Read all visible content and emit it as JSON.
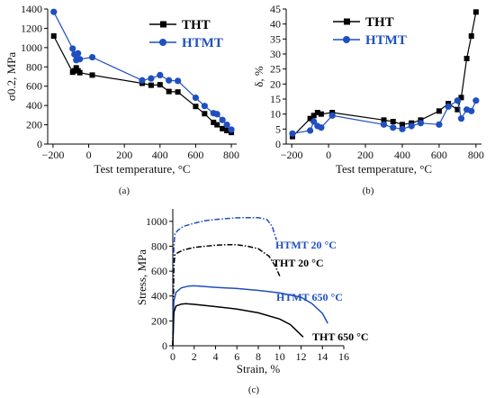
{
  "colors": {
    "tht": "#000000",
    "htmt": "#1f4fbf",
    "axis": "#000000"
  },
  "panels": [
    {
      "id": "a",
      "label": "(a)"
    },
    {
      "id": "b",
      "label": "(b)"
    },
    {
      "id": "c",
      "label": "(c)"
    }
  ],
  "chart_data": [
    {
      "id": "a",
      "type": "line",
      "xlabel": "Test temperature, °C",
      "ylabel": "σ0.2, MPa",
      "xlim": [
        -230,
        830
      ],
      "ylim": [
        0,
        1400
      ],
      "xticks": [
        -200,
        0,
        200,
        400,
        600,
        800
      ],
      "xtick_labels": [
        "−200",
        "0",
        "200",
        "400",
        "600",
        "800"
      ],
      "yticks": [
        0,
        200,
        400,
        600,
        800,
        1000,
        1200,
        1400
      ],
      "legend_position": "top-right",
      "series": [
        {
          "name": "THT",
          "marker": "square",
          "color": "#000000",
          "x": [
            -196,
            -90,
            -80,
            -70,
            -60,
            -50,
            20,
            300,
            350,
            400,
            450,
            500,
            600,
            650,
            700,
            720,
            750,
            775,
            800
          ],
          "y": [
            1120,
            745,
            760,
            790,
            760,
            740,
            715,
            630,
            610,
            615,
            545,
            540,
            390,
            315,
            225,
            200,
            160,
            140,
            120
          ]
        },
        {
          "name": "HTMT",
          "marker": "circle",
          "color": "#1f4fbf",
          "x": [
            -196,
            -90,
            -80,
            -70,
            -60,
            -50,
            20,
            300,
            350,
            400,
            450,
            500,
            600,
            650,
            700,
            720,
            750,
            775,
            800
          ],
          "y": [
            1370,
            990,
            930,
            870,
            940,
            880,
            900,
            660,
            680,
            715,
            660,
            655,
            480,
            395,
            320,
            310,
            250,
            200,
            150
          ]
        }
      ]
    },
    {
      "id": "b",
      "type": "line",
      "xlabel": "Test temperature, °C",
      "ylabel": "δ, %",
      "xlim": [
        -230,
        830
      ],
      "ylim": [
        0,
        45
      ],
      "xticks": [
        -200,
        0,
        200,
        400,
        600,
        800
      ],
      "xtick_labels": [
        "−200",
        "0",
        "200",
        "400",
        "600",
        "800"
      ],
      "yticks": [
        0,
        5,
        10,
        15,
        20,
        25,
        30,
        35,
        40,
        45
      ],
      "legend_position": "top-left",
      "series": [
        {
          "name": "THT",
          "marker": "square",
          "color": "#000000",
          "x": [
            -196,
            -100,
            -80,
            -60,
            -40,
            20,
            300,
            350,
            400,
            450,
            500,
            600,
            650,
            700,
            720,
            750,
            775,
            800
          ],
          "y": [
            2.5,
            8.5,
            9.5,
            10.5,
            10.0,
            10.5,
            8.0,
            7.5,
            6.5,
            7.0,
            8.0,
            11.0,
            13.5,
            11.5,
            15.5,
            28.5,
            36.0,
            44.0
          ]
        },
        {
          "name": "HTMT",
          "marker": "circle",
          "color": "#1f4fbf",
          "x": [
            -196,
            -100,
            -80,
            -60,
            -40,
            20,
            300,
            350,
            400,
            450,
            500,
            600,
            650,
            700,
            720,
            750,
            775,
            800
          ],
          "y": [
            3.5,
            4.5,
            7.5,
            6.0,
            5.5,
            9.5,
            6.5,
            5.5,
            5.0,
            6.0,
            7.0,
            6.5,
            12.5,
            14.5,
            8.5,
            11.5,
            11.0,
            14.5
          ]
        }
      ]
    },
    {
      "id": "c",
      "type": "line",
      "xlabel": "Strain, %",
      "ylabel": "Stress, MPa",
      "xlim": [
        0,
        16
      ],
      "ylim": [
        0,
        1100
      ],
      "xticks": [
        0,
        2,
        4,
        6,
        8,
        10,
        12,
        14,
        16
      ],
      "yticks": [
        0,
        200,
        400,
        600,
        800,
        1000
      ],
      "series": [
        {
          "name": "HTMT 20 °C",
          "style": "dashdot",
          "color": "#1f4fbf",
          "x": [
            0,
            0.1,
            0.2,
            0.5,
            1,
            2,
            3,
            4,
            5,
            6,
            7,
            8,
            8.8,
            9.3,
            9.7
          ],
          "y": [
            0,
            800,
            900,
            930,
            960,
            985,
            1005,
            1015,
            1022,
            1028,
            1030,
            1030,
            1015,
            960,
            850
          ]
        },
        {
          "name": "THT 20 °C",
          "style": "dashdot",
          "color": "#000000",
          "x": [
            0,
            0.1,
            0.2,
            0.5,
            1,
            2,
            3,
            4,
            5,
            6,
            7,
            8,
            9,
            9.6,
            10
          ],
          "y": [
            0,
            650,
            730,
            750,
            770,
            790,
            800,
            808,
            812,
            812,
            800,
            780,
            720,
            640,
            560
          ]
        },
        {
          "name": "HTMT 650 °C",
          "style": "solid",
          "color": "#1f4fbf",
          "x": [
            0,
            0.1,
            0.3,
            0.8,
            1.5,
            2,
            4,
            6,
            8,
            10,
            12,
            13,
            14,
            14.5
          ],
          "y": [
            0,
            360,
            430,
            465,
            480,
            482,
            470,
            460,
            445,
            425,
            390,
            340,
            260,
            180
          ]
        },
        {
          "name": "THT 650 °C",
          "style": "solid",
          "color": "#000000",
          "x": [
            0,
            0.1,
            0.3,
            0.8,
            1.2,
            2,
            4,
            6,
            8,
            10,
            11,
            11.6,
            12.2
          ],
          "y": [
            0,
            270,
            320,
            335,
            338,
            333,
            315,
            295,
            265,
            215,
            170,
            120,
            70
          ]
        }
      ]
    }
  ]
}
